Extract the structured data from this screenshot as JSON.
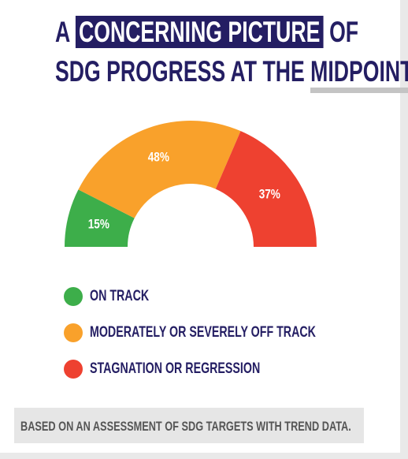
{
  "chart_data": {
    "type": "pie",
    "half": true,
    "title_parts": [
      "A",
      "CONCERNING PICTURE",
      "OF",
      "SDG PROGRESS AT THE",
      "MIDPOINT",
      ":"
    ],
    "categories": [
      "ON TRACK",
      "MODERATELY OR SEVERELY OFF TRACK",
      "STAGNATION OR REGRESSION"
    ],
    "values": [
      15,
      48,
      37
    ],
    "value_labels": [
      "15%",
      "48%",
      "37%"
    ],
    "colors": [
      "#3dae4a",
      "#f9a12b",
      "#ee4130"
    ],
    "footnote": "BASED ON AN ASSESSMENT OF SDG TARGETS WITH TREND DATA."
  }
}
